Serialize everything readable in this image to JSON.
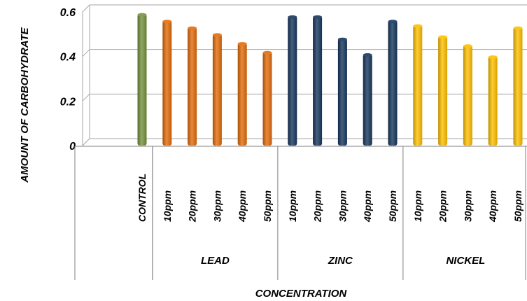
{
  "chart_data": {
    "type": "bar",
    "title": "",
    "ylabel": "AMOUNT OF CARBOHYDRATE",
    "xlabel": "CONCENTRATION",
    "ylim": [
      0,
      0.6
    ],
    "yticks": [
      "0",
      "0.2",
      "0.4",
      "0.6"
    ],
    "grid": true,
    "groups": [
      {
        "label": "",
        "bars": [
          {
            "category": "CONTROL",
            "value": 0.59,
            "color": "#76923C"
          }
        ]
      },
      {
        "label": "LEAD",
        "bars": [
          {
            "category": "10ppm",
            "value": 0.56,
            "color": "#E36C0A"
          },
          {
            "category": "20ppm",
            "value": 0.53,
            "color": "#E36C0A"
          },
          {
            "category": "30ppm",
            "value": 0.5,
            "color": "#E36C0A"
          },
          {
            "category": "40ppm",
            "value": 0.46,
            "color": "#E36C0A"
          },
          {
            "category": "50ppm",
            "value": 0.42,
            "color": "#E36C0A"
          }
        ]
      },
      {
        "label": "ZINC",
        "bars": [
          {
            "category": "10ppm",
            "value": 0.58,
            "color": "#17375E"
          },
          {
            "category": "20ppm",
            "value": 0.58,
            "color": "#17375E"
          },
          {
            "category": "30ppm",
            "value": 0.48,
            "color": "#17375E"
          },
          {
            "category": "40ppm",
            "value": 0.41,
            "color": "#17375E"
          },
          {
            "category": "50ppm",
            "value": 0.56,
            "color": "#17375E"
          }
        ]
      },
      {
        "label": "NICKEL",
        "bars": [
          {
            "category": "10ppm",
            "value": 0.54,
            "color": "#FFC000"
          },
          {
            "category": "20ppm",
            "value": 0.49,
            "color": "#FFC000"
          },
          {
            "category": "30ppm",
            "value": 0.45,
            "color": "#FFC000"
          },
          {
            "category": "40ppm",
            "value": 0.4,
            "color": "#FFC000"
          },
          {
            "category": "50ppm",
            "value": 0.53,
            "color": "#FFC000"
          }
        ]
      }
    ]
  }
}
